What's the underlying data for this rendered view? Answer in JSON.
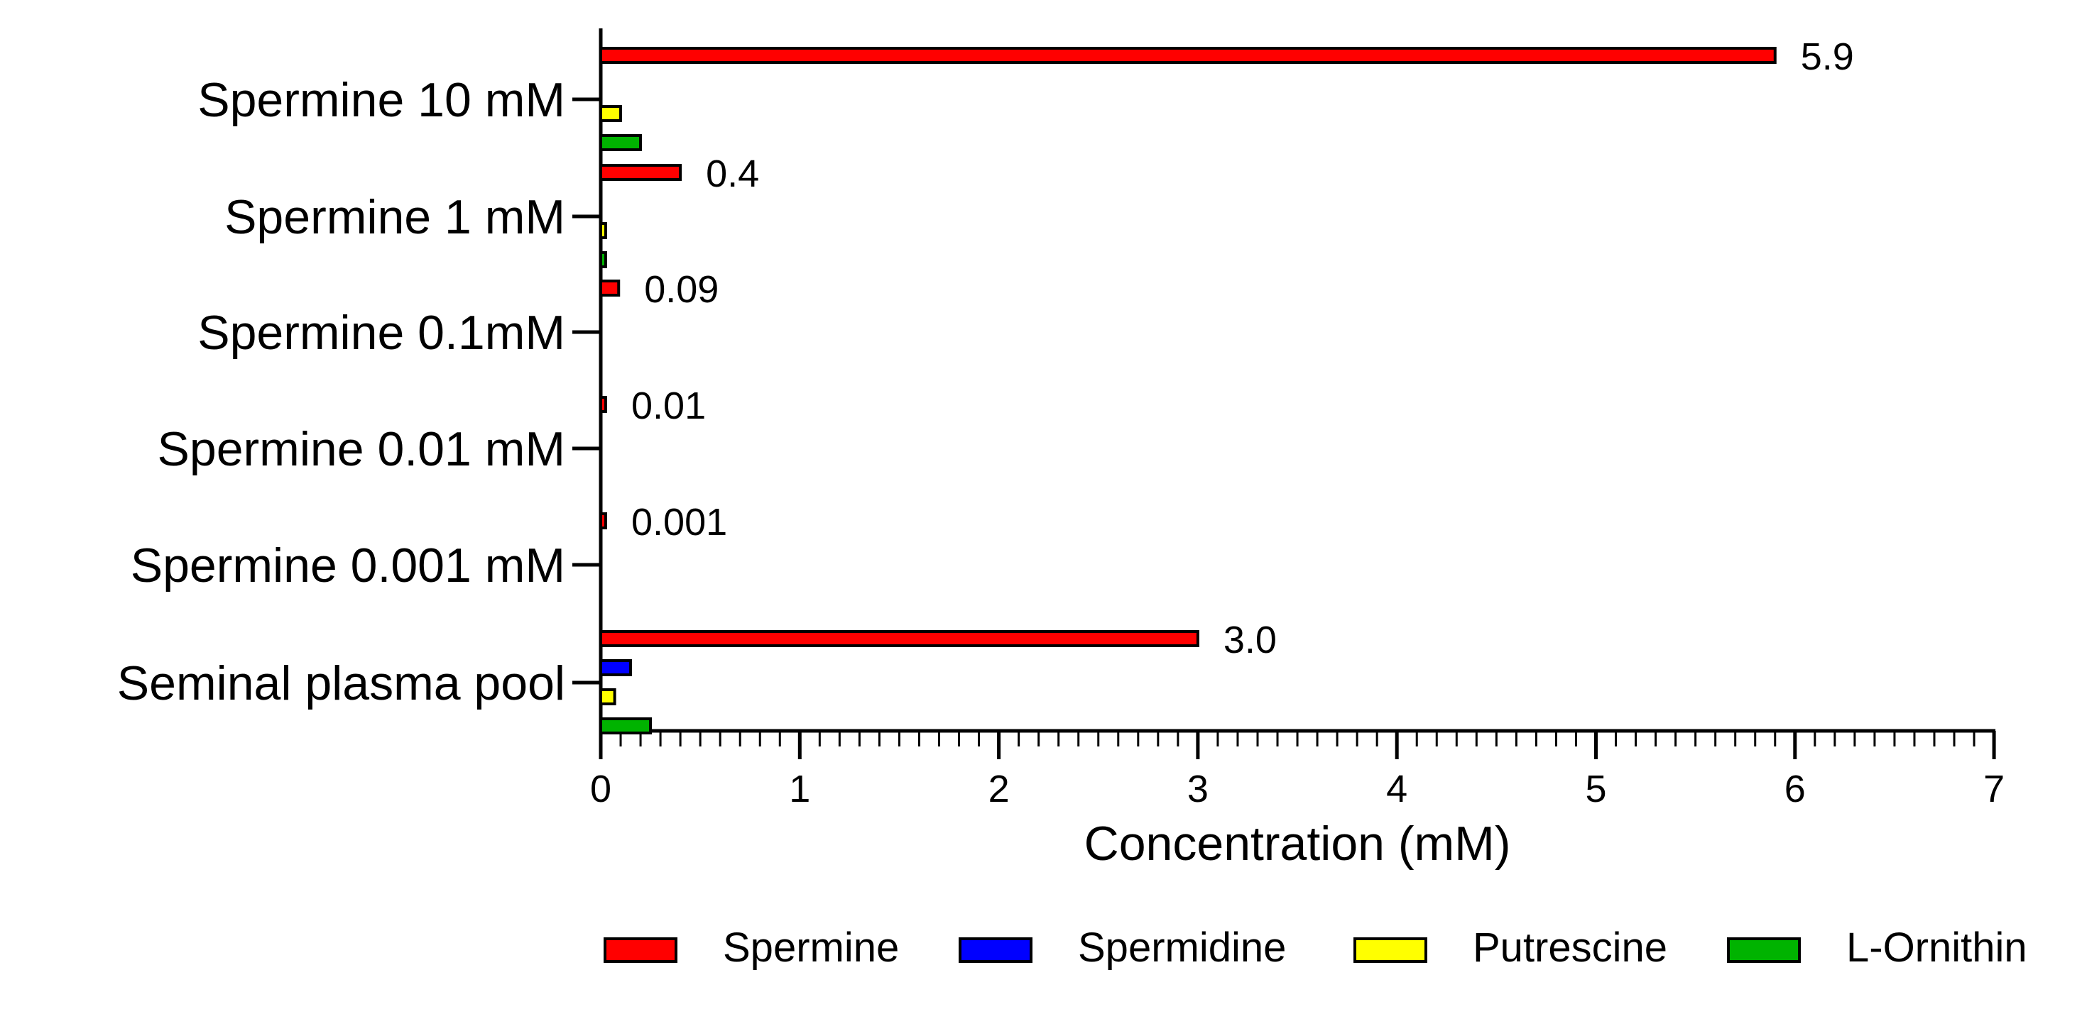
{
  "chart_data": {
    "type": "bar",
    "orientation": "horizontal",
    "title": "",
    "xlabel": "Concentration (mM)",
    "ylabel": "",
    "xlim": [
      0,
      7
    ],
    "x_ticks": [
      "0",
      "1",
      "2",
      "3",
      "4",
      "5",
      "6",
      "7"
    ],
    "categories": [
      "Spermine 10 mM",
      "Spermine 1 mM",
      "Spermine 0.1mM",
      "Spermine 0.01 mM",
      "Spermine 0.001 mM",
      "Seminal plasma pool"
    ],
    "series": [
      {
        "name": "Spermine",
        "color": "#ff0000",
        "values": [
          5.9,
          0.4,
          0.09,
          0.01,
          0.001,
          3.0
        ]
      },
      {
        "name": "Spermidine",
        "color": "#0000ff",
        "values": [
          0,
          0,
          0,
          0,
          0,
          0.15
        ]
      },
      {
        "name": "Putrescine",
        "color": "#ffff00",
        "values": [
          0.1,
          0.02,
          0,
          0,
          0,
          0.07
        ]
      },
      {
        "name": "L-Ornithin",
        "color": "#00b300",
        "values": [
          0.2,
          0.02,
          0,
          0,
          0,
          0.25
        ]
      }
    ],
    "data_labels": [
      "5.9",
      "0.4",
      "0.09",
      "0.01",
      "0.001",
      "3.0"
    ],
    "grid": false,
    "legend_position": "bottom"
  }
}
